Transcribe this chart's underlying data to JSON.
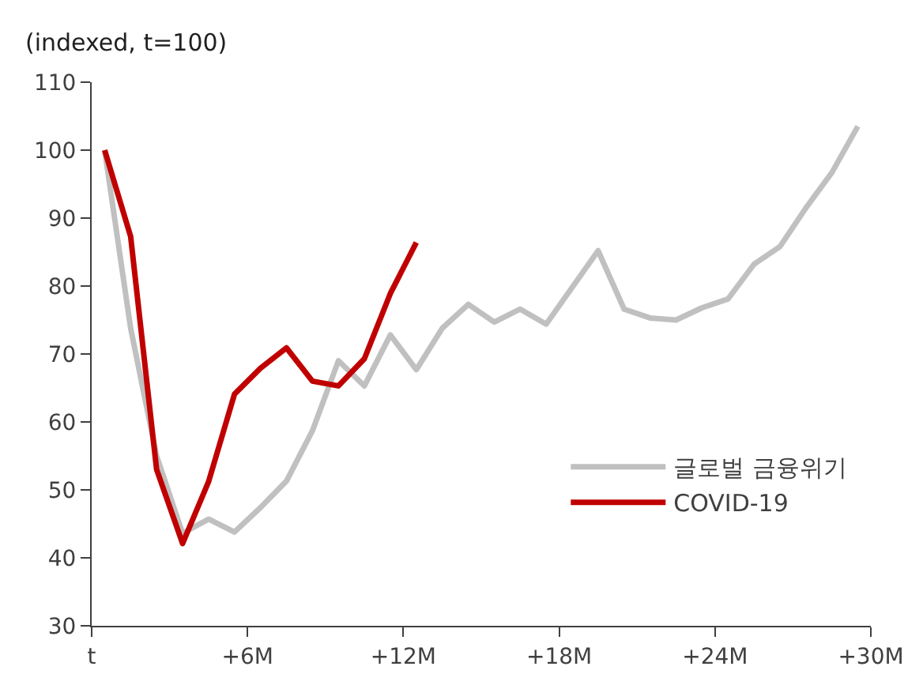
{
  "chart_data": {
    "type": "line",
    "ylabel": "(indexed, t=100)",
    "x": [
      0,
      1,
      2,
      3,
      4,
      5,
      6,
      7,
      8,
      9,
      10,
      11,
      12,
      13,
      14,
      15,
      16,
      17,
      18,
      19,
      20,
      21,
      22,
      23,
      24,
      25,
      26,
      27,
      28,
      29
    ],
    "series": [
      {
        "name": "글로벌 금융위기",
        "color": "#c0c0c0",
        "values": [
          100,
          73.8,
          55,
          43.6,
          45.7,
          43.8,
          47.4,
          51.3,
          58.7,
          69.0,
          65.3,
          72.8,
          67.7,
          73.8,
          77.3,
          74.7,
          76.6,
          74.4,
          79.8,
          85.2,
          76.6,
          75.3,
          75.0,
          76.8,
          78.1,
          83.2,
          85.8,
          91.5,
          96.7,
          103.5
        ]
      },
      {
        "name": "COVID-19",
        "color": "#c00000",
        "values": [
          100,
          87.3,
          53.0,
          42.1,
          51.2,
          64.1,
          67.9,
          70.9,
          66.0,
          65.3,
          69.3,
          78.9,
          86.4,
          null,
          null,
          null,
          null,
          null,
          null,
          null,
          null,
          null,
          null,
          null,
          null,
          null,
          null,
          null,
          null,
          null
        ]
      }
    ],
    "xlim": [
      -0.5,
      29.5
    ],
    "xticks": [
      {
        "value": -0.5,
        "label": "t"
      },
      {
        "value": 5.5,
        "label": "+6M"
      },
      {
        "value": 11.5,
        "label": "+12M"
      },
      {
        "value": 17.5,
        "label": "+18M"
      },
      {
        "value": 23.5,
        "label": "+24M"
      },
      {
        "value": 29.5,
        "label": "+30M"
      }
    ],
    "ylim": [
      30,
      110
    ],
    "yticks": [
      30,
      40,
      50,
      60,
      70,
      80,
      90,
      100,
      110
    ],
    "legend": "bottom right",
    "marker": "none",
    "line_style": "solid"
  }
}
